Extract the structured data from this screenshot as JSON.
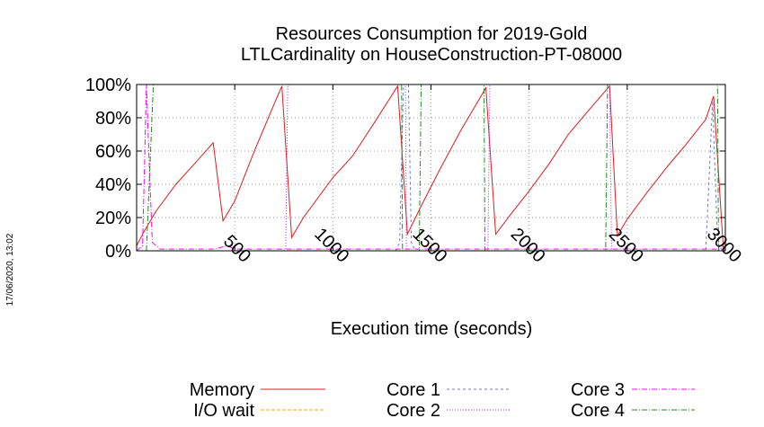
{
  "chart_data": {
    "type": "line",
    "title_line1": "Resources Consumption for 2019-Gold",
    "title_line2": "LTLCardinality on HouseConstruction-PT-08000",
    "xlabel": "Execution time (seconds)",
    "ylabel": "",
    "xlim": [
      0,
      3000
    ],
    "ylim": [
      0,
      100
    ],
    "x_ticks": [
      500,
      1000,
      1500,
      2000,
      2500,
      3000
    ],
    "x_tick_labels": [
      "500",
      "1000",
      "1500",
      "2000",
      "2500",
      "3000"
    ],
    "y_ticks": [
      0,
      20,
      40,
      60,
      80,
      100
    ],
    "y_tick_labels": [
      "0%",
      "20%",
      "40%",
      "60%",
      "80%",
      "100%"
    ],
    "grid": true,
    "legend_position": "bottom",
    "timestamp": "17/06/2020, 13:02",
    "series": [
      {
        "name": "Memory",
        "color": "#e41a1c",
        "dash": "",
        "points": [
          [
            0,
            3
          ],
          [
            40,
            12
          ],
          [
            100,
            24
          ],
          [
            200,
            40
          ],
          [
            300,
            53
          ],
          [
            390,
            65
          ],
          [
            440,
            18
          ],
          [
            500,
            30
          ],
          [
            600,
            60
          ],
          [
            700,
            88
          ],
          [
            740,
            99
          ],
          [
            790,
            8
          ],
          [
            850,
            20
          ],
          [
            1000,
            44
          ],
          [
            1100,
            57
          ],
          [
            1200,
            75
          ],
          [
            1330,
            99
          ],
          [
            1380,
            10
          ],
          [
            1450,
            27
          ],
          [
            1550,
            50
          ],
          [
            1650,
            72
          ],
          [
            1780,
            98
          ],
          [
            1830,
            10
          ],
          [
            1900,
            21
          ],
          [
            2000,
            36
          ],
          [
            2100,
            52
          ],
          [
            2200,
            70
          ],
          [
            2300,
            84
          ],
          [
            2410,
            99
          ],
          [
            2450,
            9
          ],
          [
            2500,
            19
          ],
          [
            2600,
            35
          ],
          [
            2700,
            50
          ],
          [
            2800,
            64
          ],
          [
            2900,
            79
          ],
          [
            2940,
            93
          ],
          [
            2990,
            1
          ]
        ]
      },
      {
        "name": "I/O wait",
        "color": "#ffa500",
        "dash": "4 2",
        "points": [
          [
            0,
            0
          ],
          [
            3000,
            0
          ]
        ]
      },
      {
        "name": "Core 1",
        "color": "#6a7bd6",
        "dash": "3 3",
        "points": [
          [
            0,
            0
          ],
          [
            1320,
            0
          ],
          [
            1340,
            5
          ],
          [
            1360,
            100
          ],
          [
            1385,
            100
          ],
          [
            1400,
            5
          ],
          [
            1420,
            0
          ],
          [
            2900,
            0
          ],
          [
            2935,
            90
          ],
          [
            2960,
            5
          ],
          [
            2985,
            0
          ]
        ]
      },
      {
        "name": "Core 2",
        "color": "#a020f0",
        "dash": "1 2",
        "points": [
          [
            0,
            0
          ],
          [
            760,
            0
          ],
          [
            770,
            99
          ],
          [
            780,
            100
          ],
          [
            1370,
            100
          ],
          [
            1375,
            0
          ],
          [
            1790,
            0
          ],
          [
            1800,
            100
          ],
          [
            2410,
            100
          ],
          [
            2420,
            0
          ],
          [
            3000,
            0
          ]
        ]
      },
      {
        "name": "Core 3",
        "color": "#ff00ff",
        "dash": "6 2 1 2",
        "points": [
          [
            0,
            0
          ],
          [
            30,
            3
          ],
          [
            50,
            100
          ],
          [
            65,
            50
          ],
          [
            80,
            5
          ],
          [
            120,
            1
          ],
          [
            400,
            1
          ],
          [
            460,
            3
          ],
          [
            500,
            1
          ],
          [
            3000,
            1
          ]
        ]
      },
      {
        "name": "Core 4",
        "color": "#228b22",
        "dash": "6 2 1 2",
        "points": [
          [
            0,
            0
          ],
          [
            50,
            0
          ],
          [
            85,
            100
          ],
          [
            1350,
            100
          ],
          [
            1355,
            0
          ],
          [
            1440,
            0
          ],
          [
            1450,
            100
          ],
          [
            1770,
            100
          ],
          [
            1775,
            0
          ],
          [
            2390,
            0
          ],
          [
            2400,
            100
          ],
          [
            2960,
            100
          ],
          [
            2965,
            0
          ],
          [
            3000,
            0
          ]
        ]
      }
    ]
  }
}
